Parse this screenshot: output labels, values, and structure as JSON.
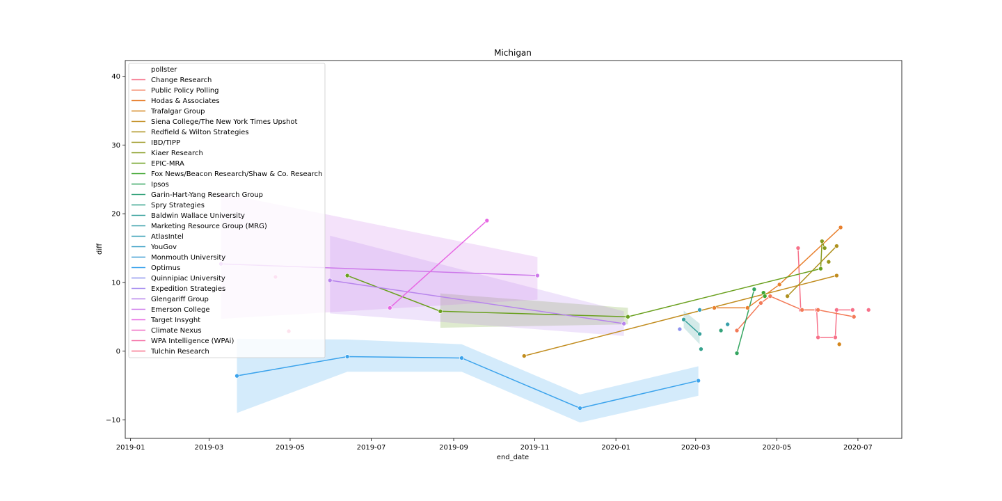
{
  "chart_data": {
    "type": "line",
    "title": "Michigan",
    "xlabel": "end_date",
    "ylabel": "diff",
    "xlim": [
      "2018-12-28",
      "2020-08-03"
    ],
    "ylim": [
      -12.7,
      42.3
    ],
    "x_ticks": [
      "2019-01",
      "2019-03",
      "2019-05",
      "2019-07",
      "2019-09",
      "2019-11",
      "2020-01",
      "2020-03",
      "2020-05",
      "2020-07"
    ],
    "y_ticks": [
      -10,
      0,
      10,
      20,
      30,
      40
    ],
    "grid": false,
    "legend": {
      "title": "pollster",
      "placement": "top-left"
    },
    "series": [
      {
        "name": "Change Research",
        "color": "#f77189",
        "points": [
          [
            "2020-05-17",
            15
          ],
          [
            "2020-05-19",
            6
          ],
          [
            "2020-05-31",
            6
          ],
          [
            "2020-06-01",
            2
          ],
          [
            "2020-06-14",
            2
          ],
          [
            "2020-06-15",
            6
          ],
          [
            "2020-06-27",
            6
          ]
        ],
        "band": []
      },
      {
        "name": "Public Policy Polling",
        "color": "#f37a58",
        "points": [
          [
            "2020-04-01",
            3
          ],
          [
            "2020-04-19",
            7
          ],
          [
            "2020-04-26",
            8
          ],
          [
            "2020-05-20",
            6
          ],
          [
            "2020-06-01",
            6
          ],
          [
            "2020-06-28",
            5
          ]
        ],
        "band": []
      },
      {
        "name": "Hodas & Associates",
        "color": "#e8802e",
        "points": [
          [
            "2020-03-15",
            6.3
          ],
          [
            "2020-04-09",
            6.3
          ],
          [
            "2020-05-03",
            9.7
          ],
          [
            "2020-06-18",
            18
          ]
        ],
        "band": []
      },
      {
        "name": "Trafalgar Group",
        "color": "#d4861c",
        "points": [
          [
            "2020-06-17",
            1
          ]
        ],
        "band": []
      },
      {
        "name": "Siena College/The New York Times Upshot",
        "color": "#c18c1e",
        "points": [
          [
            "2019-10-24",
            -0.7
          ],
          [
            "2020-06-15",
            11
          ]
        ],
        "band": []
      },
      {
        "name": "Redfield & Wilton Strategies",
        "color": "#ae911f",
        "points": [
          [
            "2020-05-09",
            8
          ],
          [
            "2020-06-15",
            15.3
          ]
        ],
        "band": []
      },
      {
        "name": "IBD/TIPP",
        "color": "#9a961f",
        "points": [
          [
            "2020-06-09",
            13
          ]
        ],
        "band": []
      },
      {
        "name": "Kiaer Research",
        "color": "#869a1f",
        "points": [
          [
            "2020-06-03",
            12
          ],
          [
            "2020-06-04",
            16
          ],
          [
            "2020-06-06",
            15
          ]
        ],
        "band": []
      },
      {
        "name": "EPIC-MRA",
        "color": "#6aa01e",
        "points": [
          [
            "2019-06-13",
            11
          ],
          [
            "2019-08-22",
            5.8
          ],
          [
            "2020-01-10",
            5
          ],
          [
            "2020-06-03",
            12
          ]
        ],
        "band": [
          [
            "2019-08-22",
            3.4,
            8.4
          ],
          [
            "2020-01-10",
            3.9,
            6.3
          ]
        ]
      },
      {
        "name": "Fox News/Beacon Research/Shaw & Co. Research",
        "color": "#3ea52e",
        "points": [
          [
            "2020-04-21",
            8.5
          ],
          [
            "2020-04-22",
            8
          ]
        ],
        "band": []
      },
      {
        "name": "Ipsos",
        "color": "#34a560",
        "points": [
          [
            "2020-04-14",
            9
          ],
          [
            "2020-04-01",
            -0.3
          ]
        ],
        "band": []
      },
      {
        "name": "Garin-Hart-Yang Research Group",
        "color": "#35a37b",
        "points": [
          [
            "2020-03-20",
            3
          ]
        ],
        "band": []
      },
      {
        "name": "Spry Strategies",
        "color": "#36a28d",
        "points": [
          [
            "2020-03-05",
            0.3
          ]
        ],
        "band": []
      },
      {
        "name": "Baldwin Wallace University",
        "color": "#37a19c",
        "points": [
          [
            "2020-02-21",
            4.6
          ],
          [
            "2020-03-04",
            2.5
          ]
        ],
        "band": [
          [
            "2020-02-21",
            3.4,
            5.9
          ],
          [
            "2020-03-04",
            1,
            4
          ]
        ]
      },
      {
        "name": "Marketing Resource Group (MRG)",
        "color": "#38a0aa",
        "points": [
          [
            "2020-03-25",
            3.9
          ]
        ],
        "band": []
      },
      {
        "name": "AtlasIntel",
        "color": "#39a0b6",
        "points": [
          [
            "2020-03-04",
            6
          ]
        ],
        "band": []
      },
      {
        "name": "YouGov",
        "color": "#3a9fc5",
        "points": [],
        "band": []
      },
      {
        "name": "Monmouth University",
        "color": "#3d9dd3",
        "points": [],
        "band": []
      },
      {
        "name": "Optimus",
        "color": "#3ba3ec",
        "points": [
          [
            "2019-03-22",
            -3.6
          ],
          [
            "2019-06-13",
            -0.8
          ],
          [
            "2019-09-07",
            -1
          ],
          [
            "2019-12-05",
            -8.3
          ],
          [
            "2020-03-03",
            -4.3
          ]
        ],
        "band": [
          [
            "2019-03-22",
            -9,
            1.8
          ],
          [
            "2019-06-13",
            -3,
            1.7
          ],
          [
            "2019-09-07",
            -3,
            1
          ],
          [
            "2019-12-05",
            -10.4,
            -6.3
          ],
          [
            "2020-03-03",
            -6.5,
            -2.2
          ]
        ]
      },
      {
        "name": "Quinnipiac University",
        "color": "#8e93ef",
        "points": [
          [
            "2020-02-18",
            3.2
          ]
        ],
        "band": []
      },
      {
        "name": "Expedition Strategies",
        "color": "#a58bf0",
        "points": [],
        "band": []
      },
      {
        "name": "Glengariff Group",
        "color": "#b784ec",
        "points": [
          [
            "2019-05-31",
            10.3
          ],
          [
            "2020-01-07",
            4
          ]
        ],
        "band": [
          [
            "2019-05-31",
            5.5,
            16.8
          ],
          [
            "2020-01-07",
            2.2,
            5.8
          ]
        ]
      },
      {
        "name": "Emerson College",
        "color": "#cd79ea",
        "points": [
          [
            "2019-03-10",
            12.7
          ],
          [
            "2019-11-03",
            11
          ]
        ],
        "band": [
          [
            "2019-03-10",
            4.7,
            23
          ],
          [
            "2019-11-03",
            7.5,
            13.7
          ]
        ]
      },
      {
        "name": "Target Insyght",
        "color": "#e768e3",
        "points": [
          [
            "2019-09-26",
            19
          ],
          [
            "2019-07-15",
            6.3
          ]
        ],
        "band": []
      },
      {
        "name": "Climate Nexus",
        "color": "#f06fc4",
        "points": [
          [
            "2019-04-20",
            10.8
          ]
        ],
        "band": []
      },
      {
        "name": "WPA Intelligence (WPAi)",
        "color": "#f571a7",
        "points": [
          [
            "2019-04-30",
            2.9
          ]
        ],
        "band": []
      },
      {
        "name": "Tulchin Research",
        "color": "#f77189",
        "points": [
          [
            "2020-07-09",
            6
          ]
        ],
        "band": []
      }
    ]
  }
}
